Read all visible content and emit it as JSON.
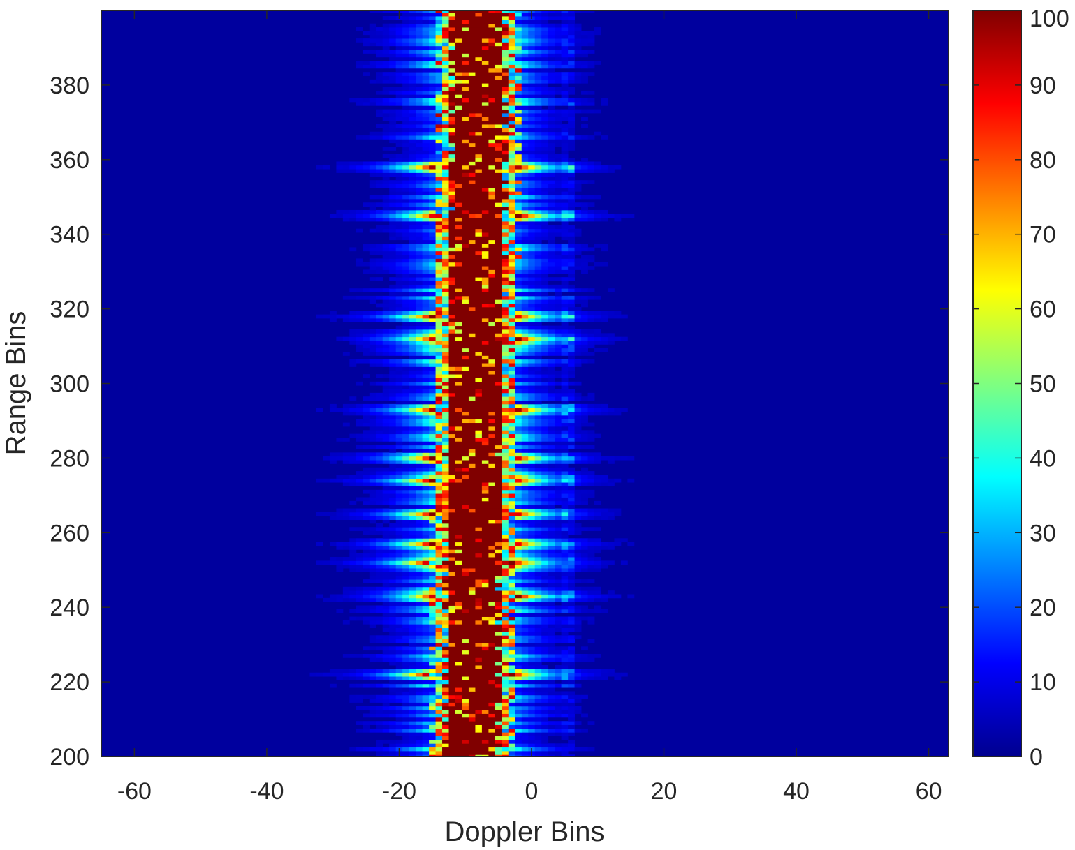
{
  "chart_data": {
    "type": "heatmap",
    "xlabel": "Doppler Bins",
    "ylabel": "Range Bins",
    "xlim": [
      -65,
      63
    ],
    "ylim": [
      200,
      400
    ],
    "xticks": [
      -60,
      -40,
      -20,
      0,
      20,
      40,
      60
    ],
    "yticks": [
      200,
      220,
      240,
      260,
      280,
      300,
      320,
      340,
      360,
      380
    ],
    "x_bins": [
      -64,
      63
    ],
    "y_bins": [
      199,
      400
    ],
    "colormap": "jet",
    "clim": [
      0,
      100
    ],
    "colorbar": {
      "ticks": [
        0,
        10,
        20,
        30,
        40,
        50,
        60,
        70,
        80,
        90,
        100
      ],
      "position": "right"
    },
    "features": {
      "main_band": {
        "center_start": -9,
        "center_end": -8,
        "halfwidth": 5,
        "level": 100
      },
      "side_lobe_rows_range_bins": [
        222,
        243,
        252,
        257,
        265,
        274,
        280,
        293,
        312,
        318,
        345,
        358
      ],
      "secondary_column_doppler_bin": 6,
      "background_level": 3
    }
  }
}
